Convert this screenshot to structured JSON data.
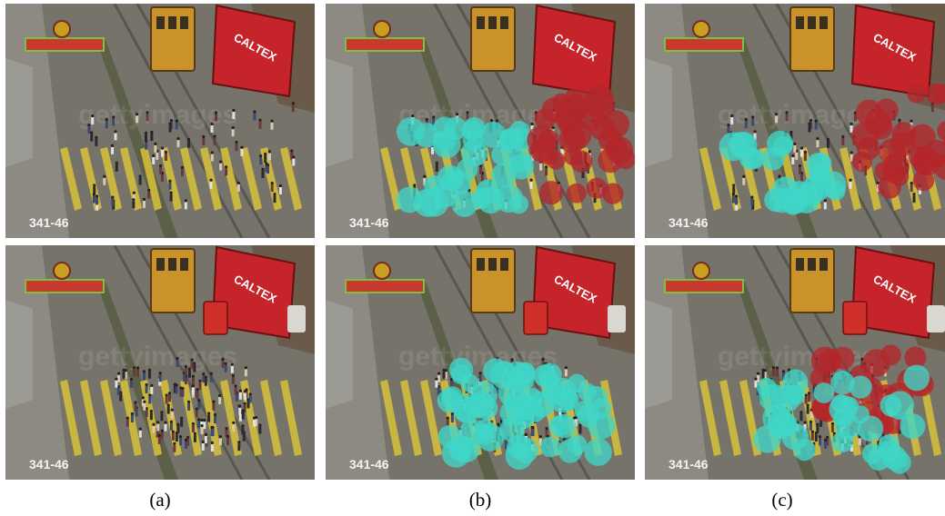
{
  "figure": {
    "panels": [
      {
        "id": "a-top",
        "row": 0,
        "col": 0,
        "timestamp": "341-46",
        "overlay": "none"
      },
      {
        "id": "b-top",
        "row": 0,
        "col": 1,
        "timestamp": "341-46",
        "overlay": "two-groups"
      },
      {
        "id": "c-top",
        "row": 0,
        "col": 2,
        "timestamp": "341-46",
        "overlay": "two-groups"
      },
      {
        "id": "a-bottom",
        "row": 1,
        "col": 0,
        "timestamp": "341-46",
        "overlay": "none"
      },
      {
        "id": "b-bottom",
        "row": 1,
        "col": 1,
        "timestamp": "341-46",
        "overlay": "one-group"
      },
      {
        "id": "c-bottom",
        "row": 1,
        "col": 2,
        "timestamp": "341-46",
        "overlay": "mixed-groups"
      }
    ],
    "captions": [
      "(a)",
      "(b)",
      "(c)"
    ],
    "watermark": "gettyimages",
    "bus_sign": "CALTEX",
    "colors": {
      "cyan_group": "#3fd6c8",
      "red_group": "#b3262a",
      "road": "#6b6a60",
      "crosswalk": "#d8c23a",
      "bus": "#c4242a",
      "tram": "#c9922a",
      "banner": "#c83a2e"
    }
  }
}
